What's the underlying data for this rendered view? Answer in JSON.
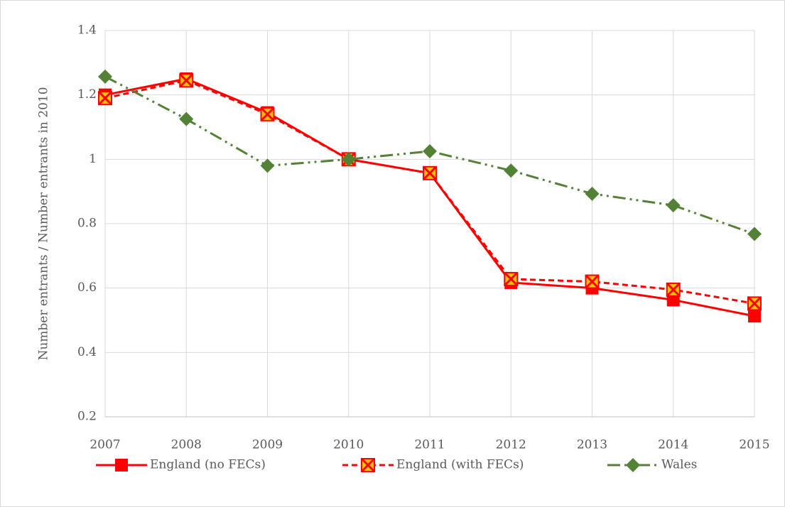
{
  "chart_data": {
    "type": "line",
    "y_label": "Number entrants / Number entrants in 2010",
    "categories": [
      "2007",
      "2008",
      "2009",
      "2010",
      "2011",
      "2012",
      "2013",
      "2014",
      "2015"
    ],
    "series": [
      {
        "name": "England (no FECs)",
        "color": "#ff0000",
        "dash": "solid",
        "marker": "square",
        "values": [
          1.2,
          1.25,
          1.145,
          1.0,
          0.957,
          0.617,
          0.6,
          0.563,
          0.513
        ]
      },
      {
        "name": "England (with FECs)",
        "color": "#ff0000",
        "dash": "dashed",
        "marker": "square-x",
        "values": [
          1.19,
          1.245,
          1.14,
          1.0,
          0.957,
          0.628,
          0.62,
          0.595,
          0.552
        ]
      },
      {
        "name": "Wales",
        "color": "#538135",
        "dash": "dash-dot-dot",
        "marker": "diamond",
        "values": [
          1.257,
          1.125,
          0.98,
          1.0,
          1.025,
          0.965,
          0.893,
          0.857,
          0.768
        ]
      }
    ],
    "ylim": [
      0.2,
      1.4
    ],
    "yticks": [
      0.2,
      0.4,
      0.6,
      0.8,
      1,
      1.2,
      1.4
    ],
    "grid": true,
    "legend": "bottom"
  }
}
